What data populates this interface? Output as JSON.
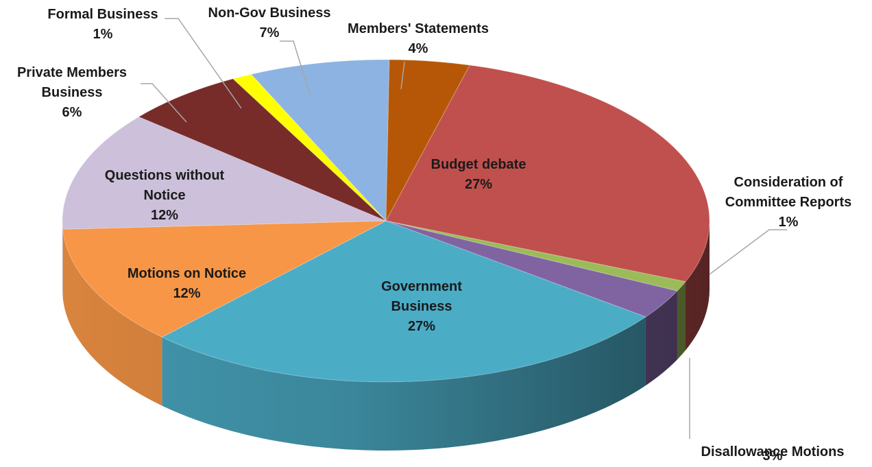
{
  "chart_data": {
    "type": "pie",
    "title": "",
    "slices": [
      {
        "key": "budget",
        "name": "Budget debate",
        "value": 27,
        "label": "27%",
        "color": "#C0504D"
      },
      {
        "key": "ccr",
        "name": "Consideration of Committee Reports",
        "value": 1,
        "label": "1%",
        "color": "#9BBB59"
      },
      {
        "key": "disallow",
        "name": "Disallowance Motions",
        "value": 3,
        "label": "3%",
        "color": "#8064A2"
      },
      {
        "key": "gov",
        "name": "Government Business",
        "value": 27,
        "label": "27%",
        "color": "#4BACC6"
      },
      {
        "key": "motions",
        "name": "Motions on Notice",
        "value": 12,
        "label": "12%",
        "color": "#F79646"
      },
      {
        "key": "qwn",
        "name": "Questions without Notice",
        "value": 12,
        "label": "12%",
        "color": "#CCC0DA"
      },
      {
        "key": "pmb",
        "name": "Private Members Business",
        "value": 6,
        "label": "6%",
        "color": "#772C2A"
      },
      {
        "key": "formal",
        "name": "Formal Business",
        "value": 1,
        "label": "1%",
        "color": "#FFFF00"
      },
      {
        "key": "nongov",
        "name": "Non-Gov Business",
        "value": 7,
        "label": "7%",
        "color": "#8DB3E2"
      },
      {
        "key": "members",
        "name": "Members' Statements",
        "value": 4,
        "label": "4%",
        "color": "#B65708"
      }
    ]
  },
  "labels": {
    "budget": [
      "Budget debate",
      "27%"
    ],
    "ccr": [
      "Consideration of",
      "Committee Reports",
      "1%"
    ],
    "disallow": [
      "Disallowance Motions",
      "3%"
    ],
    "gov": [
      "Government",
      "Business",
      "27%"
    ],
    "motions": [
      "Motions on Notice",
      "12%"
    ],
    "qwn": [
      "Questions without",
      "Notice",
      "12%"
    ],
    "pmb": [
      "Private Members",
      "Business",
      "6%"
    ],
    "formal": [
      "Formal Business",
      "1%"
    ],
    "nongov": [
      "Non-Gov Business",
      "7%"
    ],
    "members": [
      "Members' Statements",
      "4%"
    ]
  }
}
